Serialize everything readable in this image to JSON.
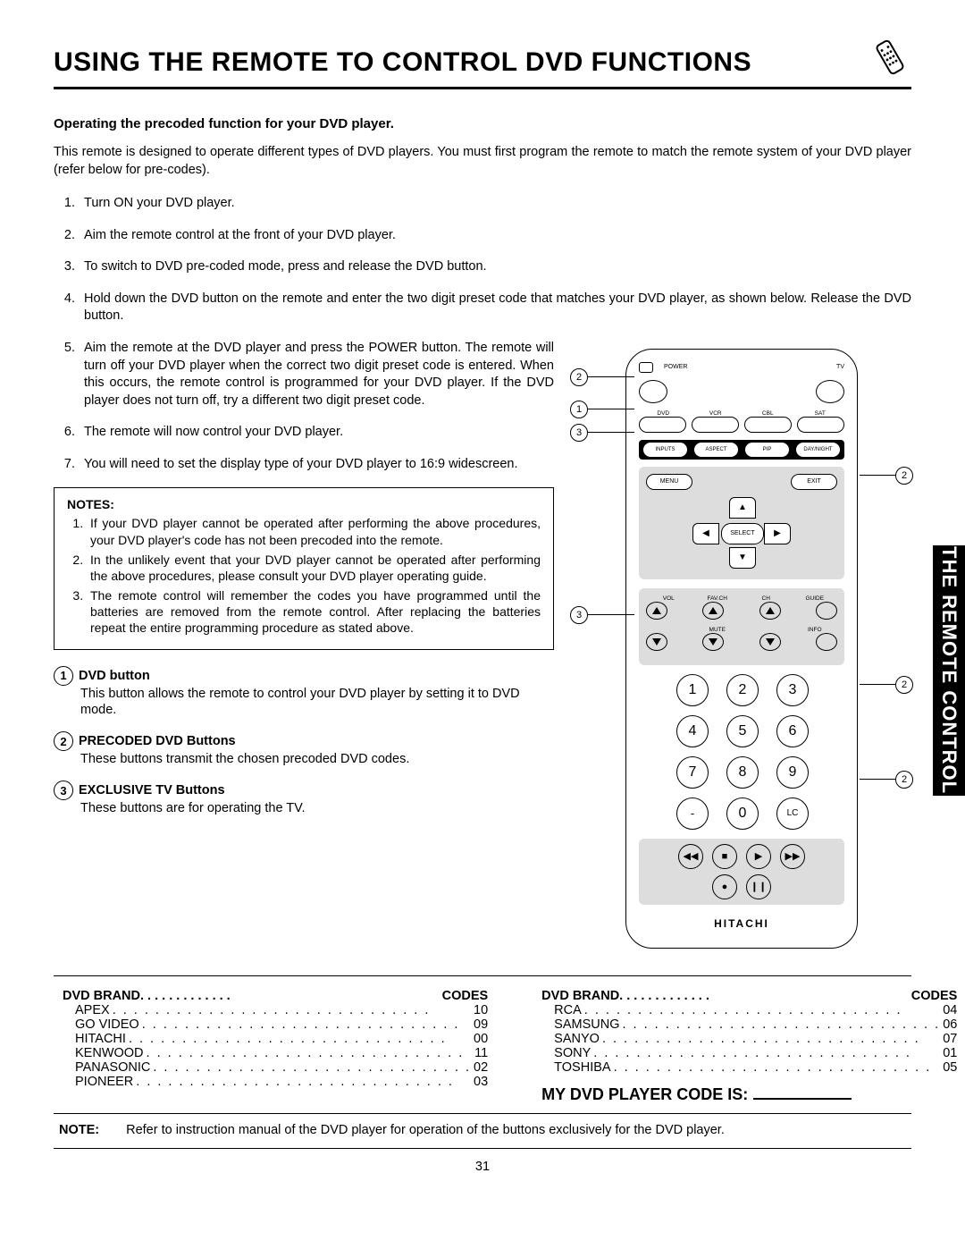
{
  "title": "USING THE REMOTE TO CONTROL DVD FUNCTIONS",
  "side_tab": "THE REMOTE CONTROL",
  "subhead": "Operating the precoded function for your DVD player.",
  "intro": "This remote is designed to operate different types of DVD players.  You must first program the remote to match the remote system of your DVD player (refer below for pre-codes).",
  "steps": [
    "Turn ON your DVD player.",
    "Aim the remote control at the front of your DVD player.",
    "To switch to DVD pre-coded mode, press and release the DVD button.",
    "Hold down the DVD button on the remote and enter the two digit preset code that matches your DVD player, as shown below. Release the DVD button.",
    "Aim the remote at the DVD player and press the POWER button.  The remote will turn off your DVD player when the correct two digit preset code is entered.  When this occurs, the remote control is programmed for your DVD player.  If the DVD player does not turn off, try a different two digit preset code.",
    "The remote will now control your DVD player.",
    "You will need to set the display type of your DVD player to 16:9 widescreen."
  ],
  "notes_label": "NOTES:",
  "notes": [
    "If your DVD player cannot be operated after performing the above procedures, your DVD player's code has not been precoded into the remote.",
    "In the unlikely event that your DVD player cannot be operated after performing the above procedures, please consult your DVD player operating guide.",
    "The remote control will remember the codes you have programmed until the batteries are removed from the remote control.  After replacing the batteries repeat the entire programming procedure as stated above."
  ],
  "buttons": [
    {
      "n": "1",
      "label": "DVD button",
      "text": "This button allows the remote to control your DVD player by setting it to DVD mode."
    },
    {
      "n": "2",
      "label": "PRECODED DVD Buttons",
      "text": "These buttons transmit the chosen precoded DVD codes."
    },
    {
      "n": "3",
      "label": "EXCLUSIVE TV Buttons",
      "text": "These buttons are for operating the TV."
    }
  ],
  "codes_header_brand": "DVD BRAND",
  "codes_header_code": "CODES",
  "codes_left": [
    {
      "brand": "APEX",
      "code": "10"
    },
    {
      "brand": "GO VIDEO",
      "code": "09"
    },
    {
      "brand": "HITACHI",
      "code": "00"
    },
    {
      "brand": "KENWOOD",
      "code": "11"
    },
    {
      "brand": "PANASONIC",
      "code": "02"
    },
    {
      "brand": "PIONEER",
      "code": "03"
    }
  ],
  "codes_right": [
    {
      "brand": "RCA",
      "code": "04"
    },
    {
      "brand": "SAMSUNG",
      "code": "06"
    },
    {
      "brand": "SANYO",
      "code": "07"
    },
    {
      "brand": "SONY",
      "code": "01"
    },
    {
      "brand": "TOSHIBA",
      "code": "05"
    }
  ],
  "mycode_label": "MY DVD PLAYER CODE IS:",
  "final_note_label": "NOTE:",
  "final_note": "Refer to instruction manual of the DVD player for operation of the buttons exclusively for the DVD player.",
  "page_number": "31",
  "remote": {
    "power": "POWER",
    "tv": "TV",
    "mode": [
      "DVD",
      "VCR",
      "CBL",
      "SAT"
    ],
    "row3": [
      "INPUTS",
      "ASPECT",
      "PIP",
      "DAY/NIGHT"
    ],
    "menu": "MENU",
    "exit": "EXIT",
    "select": "SELECT",
    "vol": "VOL",
    "favch": "FAV.CH",
    "ch": "CH",
    "guide": "GUIDE",
    "mute": "MUTE",
    "info": "INFO",
    "nums": [
      "1",
      "2",
      "3",
      "4",
      "5",
      "6",
      "7",
      "8",
      "9",
      "-",
      "0",
      "LC"
    ],
    "brand": "HITACHI"
  },
  "callouts": {
    "c1": "1",
    "c2": "2",
    "c3": "3"
  }
}
